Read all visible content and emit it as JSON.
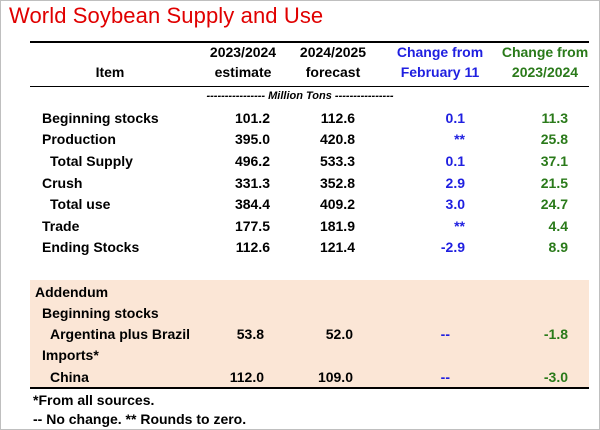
{
  "title": "World Soybean Supply and Use",
  "headers": {
    "item": "Item",
    "col1_line1": "2023/2024",
    "col1_line2": "estimate",
    "col2_line1": "2024/2025",
    "col2_line2": "forecast",
    "col3_line1": "Change from",
    "col3_line2": "February 11",
    "col4_line1": "Change from",
    "col4_line2": "2023/2024"
  },
  "units": "---------------- Million Tons ----------------",
  "rows": [
    {
      "label": "Beginning stocks",
      "v1": "101.2",
      "v2": "112.6",
      "c1": "0.1",
      "c2": "11.3"
    },
    {
      "label": "Production",
      "v1": "395.0",
      "v2": "420.8",
      "c1": "**",
      "c2": "25.8"
    },
    {
      "label": "Total Supply",
      "v1": "496.2",
      "v2": "533.3",
      "c1": "0.1",
      "c2": "37.1"
    },
    {
      "label": "Crush",
      "v1": "331.3",
      "v2": "352.8",
      "c1": "2.9",
      "c2": "21.5"
    },
    {
      "label": "Total use",
      "v1": "384.4",
      "v2": "409.2",
      "c1": "3.0",
      "c2": "24.7"
    },
    {
      "label": "Trade",
      "v1": "177.5",
      "v2": "181.9",
      "c1": "**",
      "c2": "4.4"
    },
    {
      "label": "Ending Stocks",
      "v1": "112.6",
      "v2": "121.4",
      "c1": "-2.9",
      "c2": "8.9"
    }
  ],
  "addendum": {
    "heading": "Addendum",
    "group1": "Beginning stocks",
    "row1": {
      "label": "Argentina plus Brazil",
      "v1": "53.8",
      "v2": "52.0",
      "c1": "--",
      "c2": "-1.8"
    },
    "group2": "Imports*",
    "row2": {
      "label": "China",
      "v1": "112.0",
      "v2": "109.0",
      "c1": "--",
      "c2": "-3.0"
    }
  },
  "footnotes": {
    "line1": "*From all sources.",
    "line2": "-- No change.  ** Rounds to zero."
  },
  "colors": {
    "title": "#e00000",
    "change_feb": "#1f1fe0",
    "change_prev": "#2a7a1a",
    "addendum_bg": "#fbe6d6"
  }
}
